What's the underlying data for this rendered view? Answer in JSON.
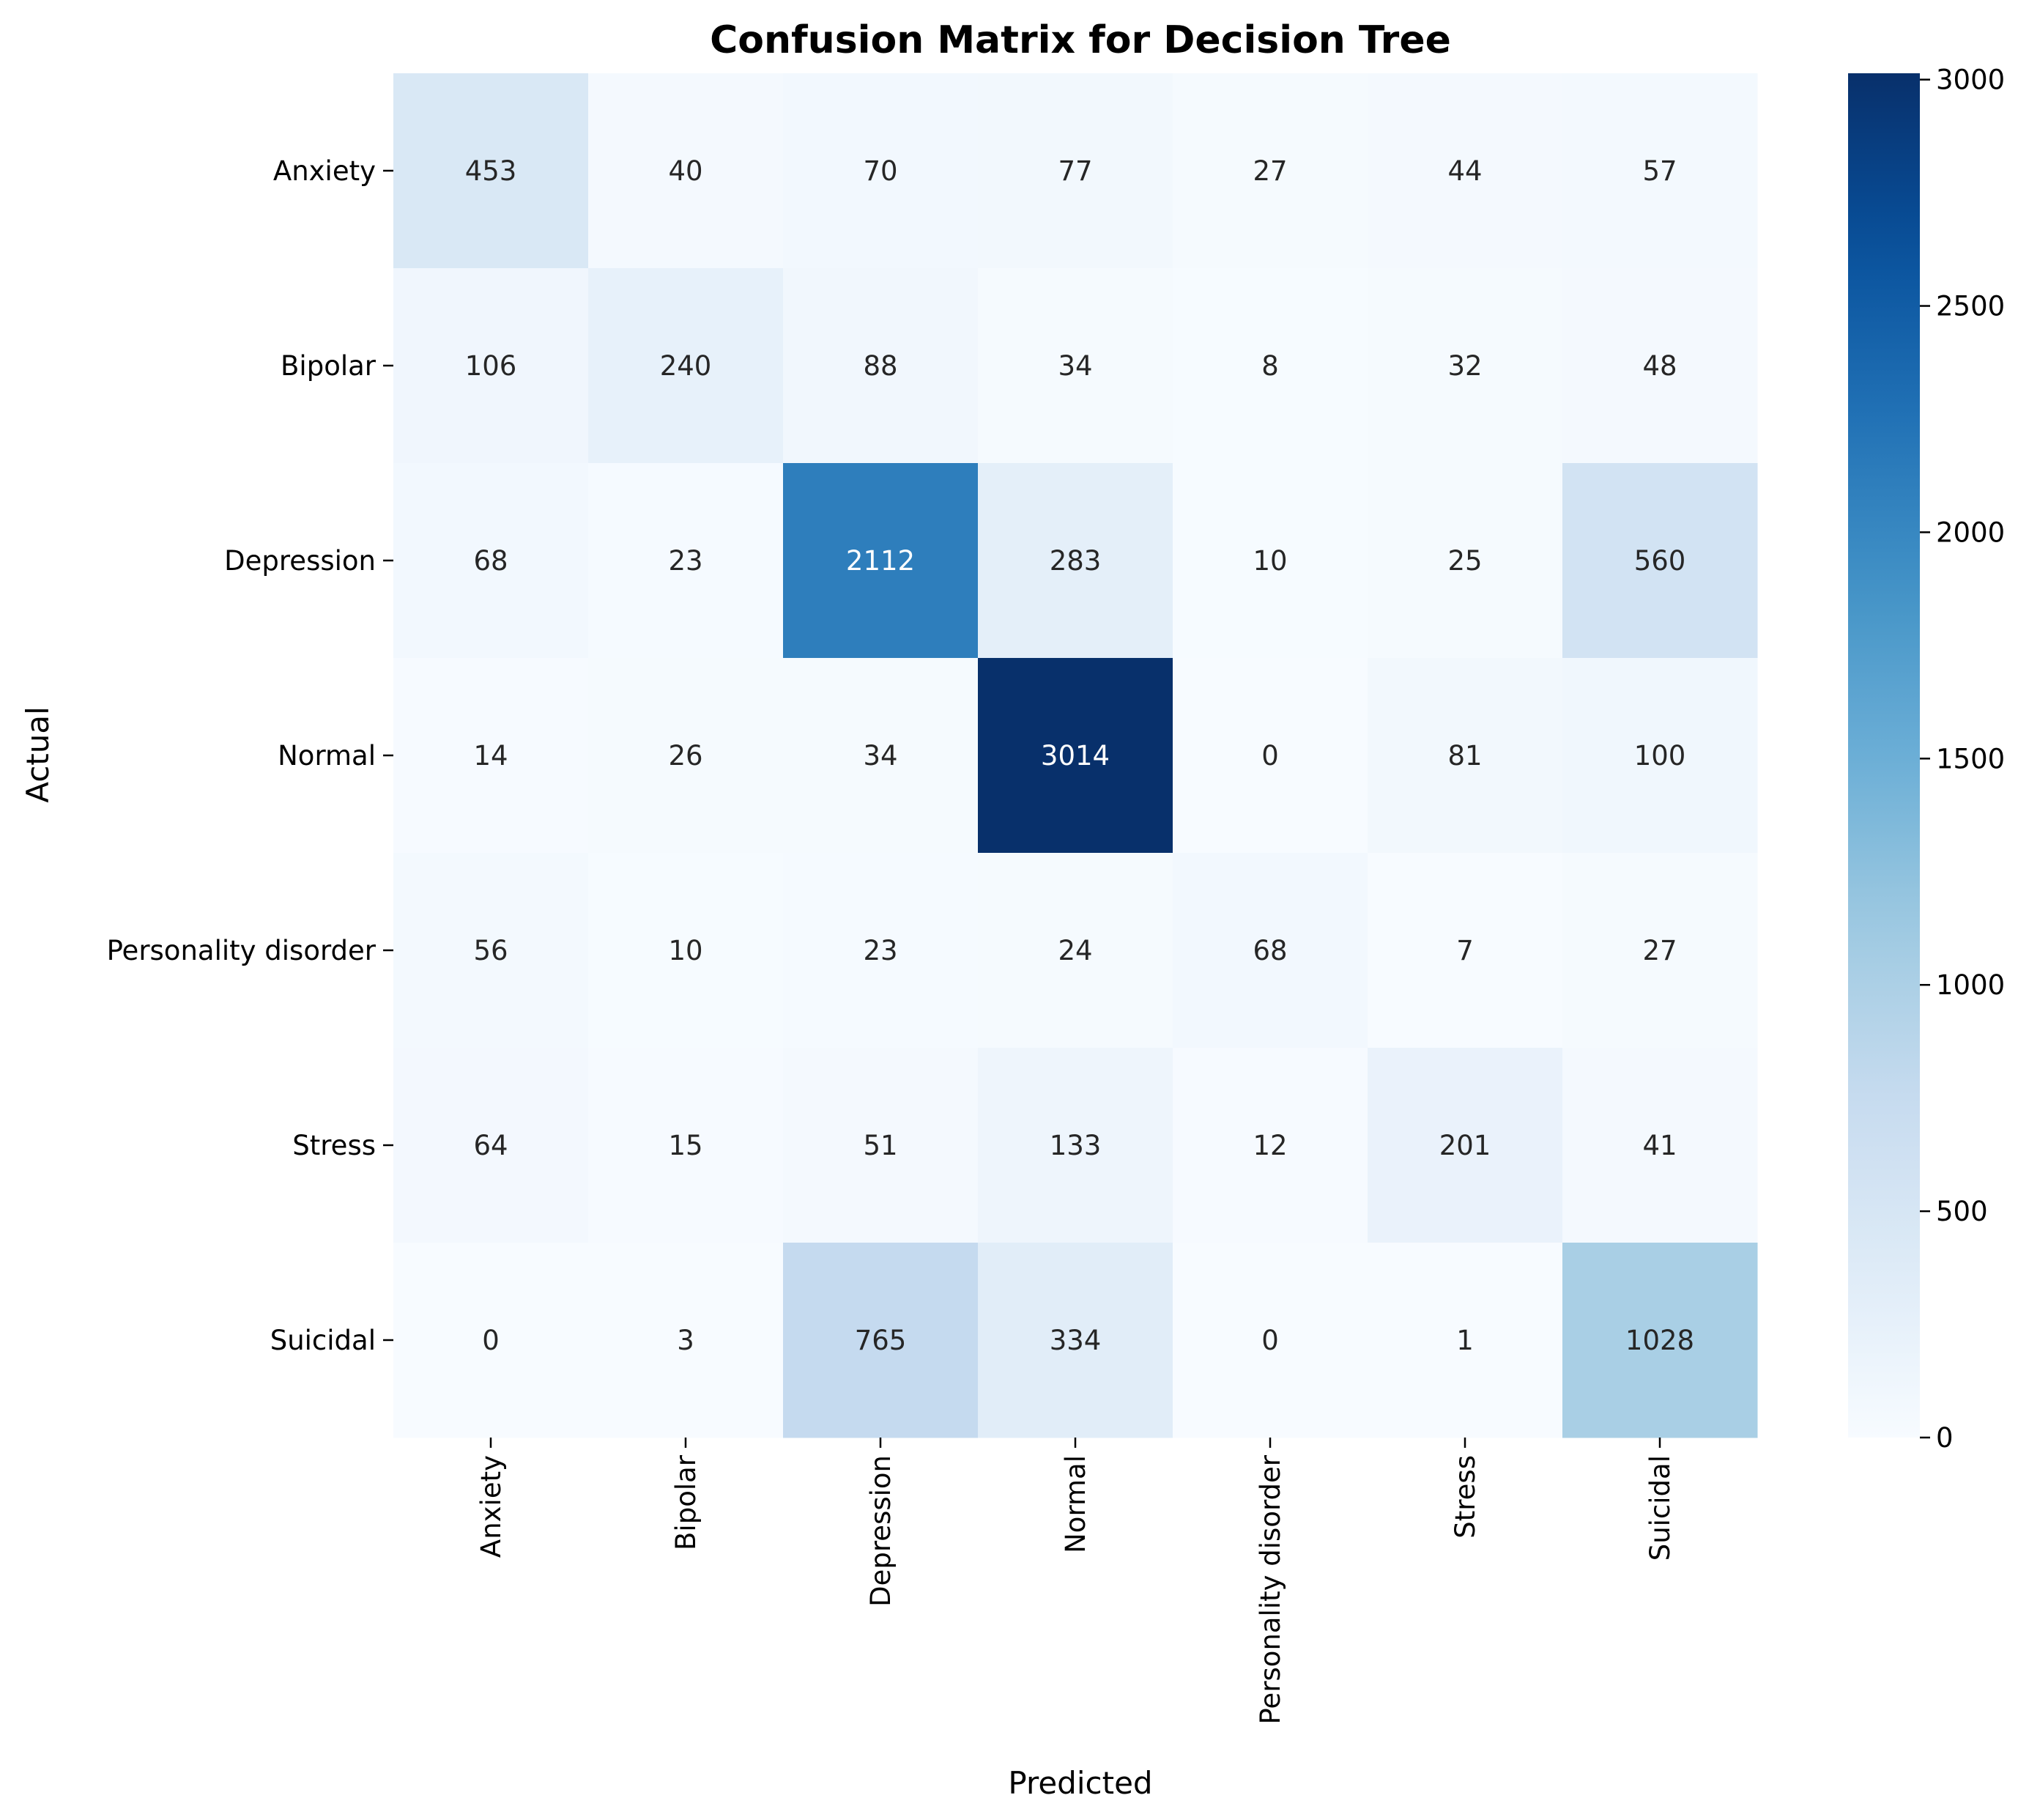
{
  "chart_data": {
    "type": "heatmap",
    "title": "Confusion Matrix for Decision Tree",
    "xlabel": "Predicted",
    "ylabel": "Actual",
    "x_categories": [
      "Anxiety",
      "Bipolar",
      "Depression",
      "Normal",
      "Personality disorder",
      "Stress",
      "Suicidal"
    ],
    "y_categories": [
      "Anxiety",
      "Bipolar",
      "Depression",
      "Normal",
      "Personality disorder",
      "Stress",
      "Suicidal"
    ],
    "values": [
      [
        453,
        40,
        70,
        77,
        27,
        44,
        57
      ],
      [
        106,
        240,
        88,
        34,
        8,
        32,
        48
      ],
      [
        68,
        23,
        2112,
        283,
        10,
        25,
        560
      ],
      [
        14,
        26,
        34,
        3014,
        0,
        81,
        100
      ],
      [
        56,
        10,
        23,
        24,
        68,
        7,
        27
      ],
      [
        64,
        15,
        51,
        133,
        12,
        201,
        41
      ],
      [
        0,
        3,
        765,
        334,
        0,
        1,
        1028
      ]
    ],
    "colorbar": {
      "min": 0,
      "max": 3014,
      "ticks": [
        0,
        500,
        1000,
        1500,
        2000,
        2500,
        3000
      ],
      "colormap": "Blues"
    }
  }
}
